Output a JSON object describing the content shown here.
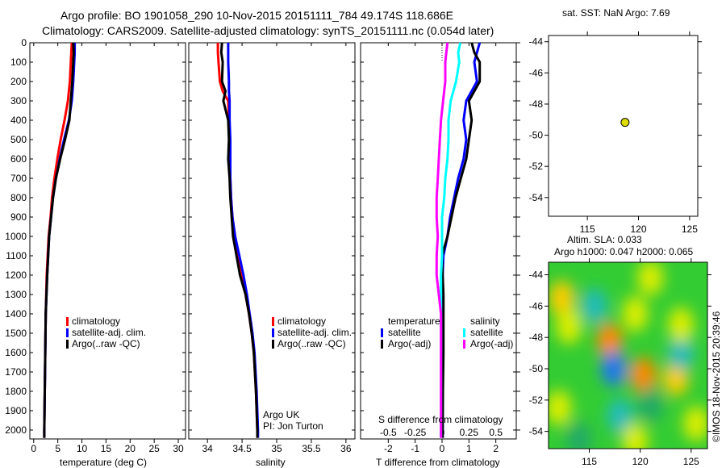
{
  "title_line1": "Argo profile: BO 1901058_290 10-Nov-2015 20151111_784 49.174S 118.686E",
  "title_line2": "Climatology: CARS2009. Satellite-adjusted climatology: synTS_20151111.nc (0.054d later)",
  "colors": {
    "climatology": "#ff0000",
    "satellite": "#0000ff",
    "argo": "#000000",
    "s_satellite": "#00ffff",
    "s_argo": "#ff00ff",
    "point": "#dddd00"
  },
  "chart_data": [
    {
      "id": "temperature",
      "type": "line",
      "xlabel": "temperature (deg C)",
      "ylabel": "",
      "xlim": [
        -0.8,
        31.5
      ],
      "ylim": [
        0,
        2046
      ],
      "xticks": [
        0,
        5,
        10,
        15,
        20,
        25,
        30
      ],
      "yticks": [
        0,
        100,
        200,
        300,
        400,
        500,
        600,
        700,
        800,
        900,
        1000,
        1100,
        1200,
        1300,
        1400,
        1500,
        1600,
        1700,
        1800,
        1900,
        2000
      ],
      "depth": [
        0,
        50,
        100,
        200,
        300,
        400,
        500,
        600,
        700,
        800,
        900,
        1000,
        1200,
        1400,
        1600,
        1800,
        2000,
        2040
      ],
      "series": [
        {
          "name": "climatology",
          "color": "#ff0000",
          "values": [
            7.9,
            7.8,
            7.7,
            7.5,
            7.1,
            6.4,
            5.6,
            4.9,
            4.3,
            3.8,
            3.5,
            3.1,
            2.7,
            2.5,
            2.4,
            2.3,
            2.2,
            2.2
          ]
        },
        {
          "name": "satellite-adj. clim.",
          "color": "#0000ff",
          "values": [
            8.5,
            8.5,
            8.4,
            8.2,
            7.9,
            7.3,
            6.3,
            5.4,
            4.6,
            4.0,
            3.6,
            3.2,
            2.8,
            2.5,
            2.4,
            2.3,
            2.2,
            2.2
          ]
        },
        {
          "name": "Argo(..raw -QC)",
          "color": "#000000",
          "values": [
            8.2,
            8.3,
            8.2,
            8.0,
            7.7,
            7.4,
            6.5,
            5.5,
            4.6,
            4.0,
            3.6,
            3.2,
            2.8,
            2.5,
            2.4,
            2.3,
            2.2,
            2.2
          ]
        }
      ],
      "legend": [
        "climatology",
        "satellite-adj. clim.",
        "Argo(..raw -QC)"
      ]
    },
    {
      "id": "salinity",
      "type": "line",
      "xlabel": "salinity",
      "xlim": [
        33.73,
        36.13
      ],
      "ylim": [
        0,
        2046
      ],
      "xticks": [
        34,
        34.5,
        35,
        35.5,
        36
      ],
      "depth": [
        0,
        50,
        100,
        200,
        250,
        300,
        400,
        500,
        600,
        700,
        800,
        900,
        1000,
        1100,
        1200,
        1300,
        1400,
        1500,
        1600,
        1800,
        2000,
        2040
      ],
      "series": [
        {
          "name": "climatology",
          "color": "#ff0000",
          "values": [
            34.15,
            34.15,
            34.16,
            34.18,
            34.22,
            34.3,
            34.31,
            34.32,
            34.32,
            34.33,
            34.34,
            34.36,
            34.4,
            34.45,
            34.5,
            34.55,
            34.6,
            34.64,
            34.67,
            34.7,
            34.72,
            34.72
          ]
        },
        {
          "name": "satellite-adj. clim.",
          "color": "#0000ff",
          "values": [
            34.3,
            34.3,
            34.3,
            34.31,
            34.31,
            34.32,
            34.32,
            34.33,
            34.33,
            34.33,
            34.34,
            34.36,
            34.4,
            34.46,
            34.52,
            34.57,
            34.61,
            34.65,
            34.68,
            34.71,
            34.73,
            34.73
          ]
        },
        {
          "name": "Argo(..raw -QC)",
          "color": "#000000",
          "values": [
            34.21,
            34.2,
            34.22,
            34.21,
            34.26,
            34.23,
            34.3,
            34.31,
            34.3,
            34.32,
            34.33,
            34.35,
            34.37,
            34.42,
            34.47,
            34.55,
            34.6,
            34.64,
            34.67,
            34.7,
            34.72,
            34.72
          ]
        }
      ],
      "legend": [
        "climatology",
        "satellite-adj. clim.",
        "Argo(..raw -QC)"
      ],
      "annotations": [
        "Argo UK",
        "PI: Jon Turton"
      ]
    },
    {
      "id": "difference",
      "type": "line",
      "xlabel": "T difference from climatology",
      "x2label": "S difference from climatology",
      "xlim": [
        -3.03,
        2.76
      ],
      "ylim": [
        0,
        2046
      ],
      "xticks": [
        -2,
        -1,
        0,
        1,
        2
      ],
      "x2ticks": [
        -0.5,
        -0.25,
        0,
        0.25,
        0.5
      ],
      "depth": [
        0,
        50,
        100,
        200,
        300,
        400,
        500,
        600,
        700,
        800,
        900,
        1000,
        1100,
        1200,
        1300,
        1400,
        1600,
        1800,
        2000,
        2040
      ],
      "series": [
        {
          "name": "T satellite",
          "color": "#0000ff",
          "values": [
            1.4,
            1.3,
            1.2,
            1.3,
            0.9,
            0.8,
            0.9,
            0.8,
            0.6,
            0.45,
            0.3,
            0.2,
            0.05,
            0.02,
            0.02,
            0.02,
            0.02,
            0.02,
            0.02,
            0.02
          ]
        },
        {
          "name": "T Argo(-adj)",
          "color": "#000000",
          "values": [
            1.1,
            1.2,
            1.4,
            1.4,
            1.0,
            1.1,
            1.0,
            0.9,
            0.7,
            0.5,
            0.35,
            0.2,
            0.0,
            0.02,
            0.05,
            0.05,
            0.05,
            0.03,
            0.02,
            0.02
          ]
        },
        {
          "name": "S satellite",
          "color": "#00ffff",
          "values": [
            0.17,
            0.15,
            0.16,
            0.13,
            0.08,
            0.06,
            0.06,
            0.05,
            0.03,
            0.02,
            0.0,
            0.0,
            0.0,
            -0.01,
            -0.01,
            -0.01,
            -0.01,
            -0.01,
            -0.01,
            -0.01
          ]
        },
        {
          "name": "S Argo(-adj)",
          "color": "#ff00ff",
          "values": [
            0.05,
            0.04,
            0.03,
            0.03,
            0.01,
            -0.01,
            -0.02,
            -0.03,
            -0.04,
            -0.05,
            -0.05,
            -0.04,
            -0.05,
            -0.05,
            -0.03,
            -0.01,
            -0.01,
            -0.01,
            -0.01,
            -0.01
          ]
        }
      ],
      "legend_temperature_title": "temperature",
      "legend_salinity_title": "salinity",
      "legend": [
        "satellite",
        "Argo(-adj)",
        "satellite",
        "Argo(-adj)"
      ]
    },
    {
      "id": "sst-map",
      "type": "scatter",
      "title": "sat. SST: NaN Argo: 7.69",
      "xlim": [
        111.2,
        125.8
      ],
      "ylim": [
        -55.2,
        -43.6
      ],
      "xticks": [
        115,
        120,
        125
      ],
      "yticks": [
        -44,
        -46,
        -48,
        -50,
        -52,
        -54
      ],
      "points": [
        {
          "lon": 118.686,
          "lat": -49.174
        }
      ]
    },
    {
      "id": "sla-map",
      "type": "heatmap",
      "title_line1": "Altim. SLA: 0.033",
      "title_line2": "Argo h1000: 0.047 h2000: 0.065",
      "xlim": [
        111,
        126.6
      ],
      "ylim": [
        -55.1,
        -43.2
      ],
      "xticks": [
        115,
        120,
        125
      ],
      "yticks": [
        -44,
        -46,
        -48,
        -50,
        -52,
        -54
      ],
      "blobs": [
        {
          "lon": 112.3,
          "lat": -45.5,
          "v": 0.6
        },
        {
          "lon": 113,
          "lat": -47.3,
          "v": 0.4
        },
        {
          "lon": 117,
          "lat": -48.2,
          "v": 0.9
        },
        {
          "lon": 117.4,
          "lat": -50,
          "v": -1
        },
        {
          "lon": 120.3,
          "lat": -50.4,
          "v": 0.9
        },
        {
          "lon": 123.5,
          "lat": -50.6,
          "v": 0.7
        },
        {
          "lon": 115.5,
          "lat": -46,
          "v": -0.6
        },
        {
          "lon": 124,
          "lat": -49,
          "v": -0.6
        },
        {
          "lon": 124,
          "lat": -47.2,
          "v": 0.5
        },
        {
          "lon": 119.5,
          "lat": -46.5,
          "v": 0.35
        },
        {
          "lon": 118,
          "lat": -53,
          "v": -0.5
        },
        {
          "lon": 121,
          "lat": -52.3,
          "v": -0.4
        },
        {
          "lon": 119.5,
          "lat": -54.6,
          "v": 0.4
        },
        {
          "lon": 112,
          "lat": -52.5,
          "v": 0.3
        },
        {
          "lon": 125.5,
          "lat": -53.5,
          "v": 0.4
        },
        {
          "lon": 114,
          "lat": -54.5,
          "v": -0.4
        },
        {
          "lon": 121,
          "lat": -44.2,
          "v": 0.3
        }
      ],
      "credit": "©IMOS 18-Nov-2015 20:39:46"
    }
  ]
}
